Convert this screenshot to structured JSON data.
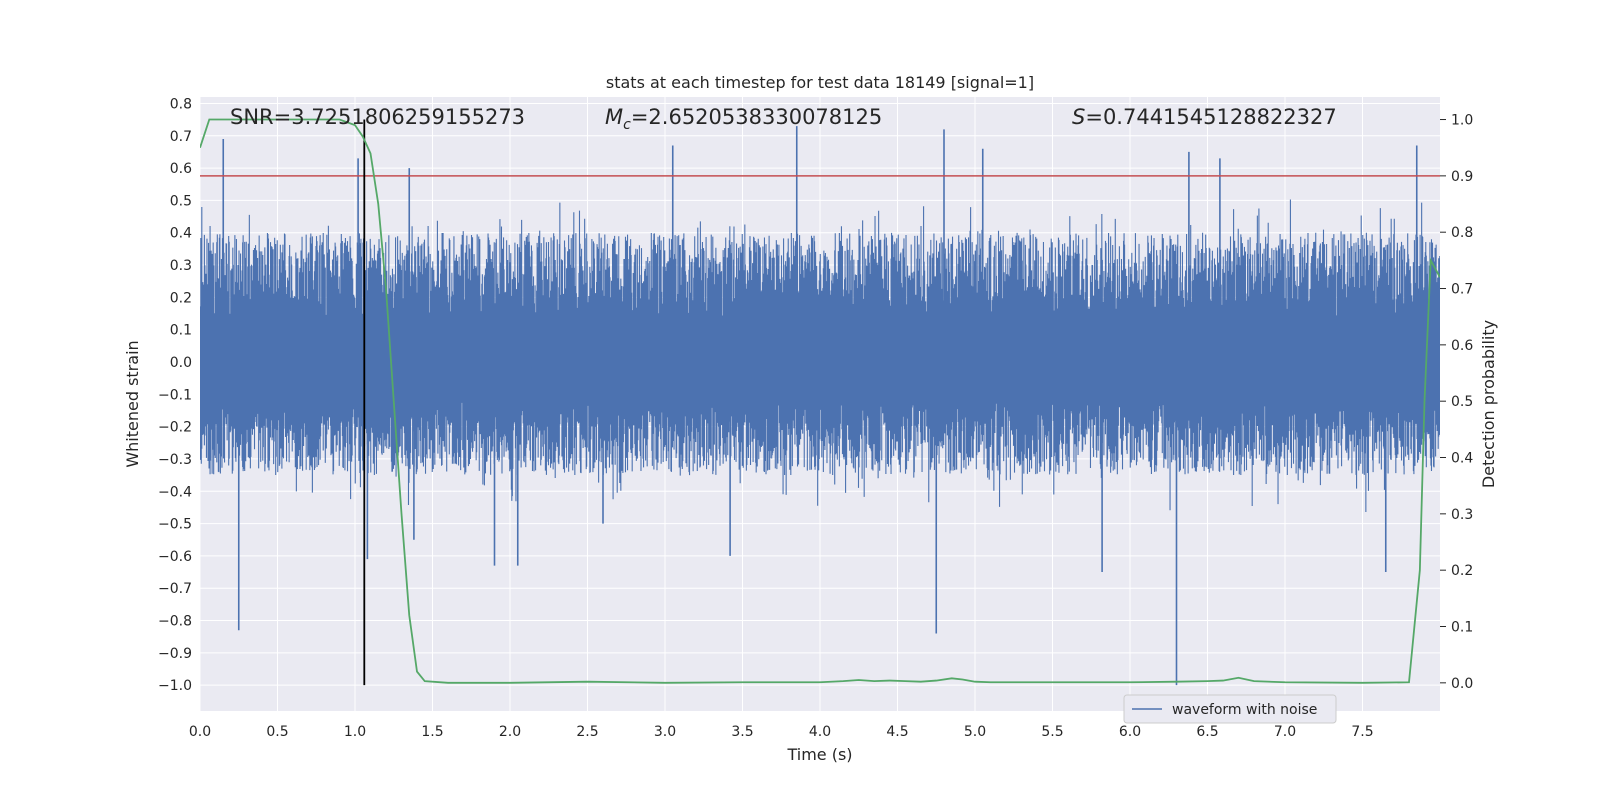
{
  "chart_data": {
    "type": "line",
    "title": "stats at each timestep for test data 18149 [signal=1]",
    "xlabel": "Time (s)",
    "ylabel_left": "Whitened strain",
    "ylabel_right": "Detection probability",
    "xlim": [
      0.0,
      8.0
    ],
    "ylim_left": [
      -1.08,
      0.82
    ],
    "ylim_right": [
      -0.05,
      1.04
    ],
    "x_ticks": [
      "0.0",
      "0.5",
      "1.0",
      "1.5",
      "2.0",
      "2.5",
      "3.0",
      "3.5",
      "4.0",
      "4.5",
      "5.0",
      "5.5",
      "6.0",
      "6.5",
      "7.0",
      "7.5"
    ],
    "y_ticks_left": [
      "0.8",
      "0.7",
      "0.6",
      "0.5",
      "0.4",
      "0.3",
      "0.2",
      "0.1",
      "0.0",
      "−0.1",
      "−0.2",
      "−0.3",
      "−0.4",
      "−0.5",
      "−0.6",
      "−0.7",
      "−0.8",
      "−0.9",
      "−1.0"
    ],
    "y_ticks_right": [
      "1.0",
      "0.9",
      "0.8",
      "0.7",
      "0.6",
      "0.5",
      "0.4",
      "0.3",
      "0.2",
      "0.1",
      "0.0"
    ],
    "annotations": {
      "snr": "SNR=3.7251806259155273",
      "mc_symbol": "M",
      "mc_sub": "c",
      "mc_value": "=2.6520538330078125",
      "s_symbol": "S",
      "s_value": "=0.7441545128822327"
    },
    "threshold": 0.9,
    "vertical_marker_x": 1.06,
    "grid": true,
    "legend_position": "bottom-right",
    "series": [
      {
        "name": "waveform with noise",
        "axis": "left",
        "color": "#4c72b0",
        "envelope_typical": [
          -0.35,
          0.4
        ],
        "spikes": [
          {
            "x": 0.15,
            "y": 0.69
          },
          {
            "x": 0.25,
            "y": -0.83
          },
          {
            "x": 1.02,
            "y": 0.63
          },
          {
            "x": 1.08,
            "y": -0.61
          },
          {
            "x": 1.35,
            "y": 0.6
          },
          {
            "x": 1.38,
            "y": -0.55
          },
          {
            "x": 1.9,
            "y": -0.63
          },
          {
            "x": 2.05,
            "y": -0.63
          },
          {
            "x": 2.6,
            "y": -0.5
          },
          {
            "x": 3.05,
            "y": 0.67
          },
          {
            "x": 3.42,
            "y": -0.6
          },
          {
            "x": 3.85,
            "y": 0.73
          },
          {
            "x": 4.75,
            "y": -0.84
          },
          {
            "x": 4.8,
            "y": 0.72
          },
          {
            "x": 5.05,
            "y": 0.66
          },
          {
            "x": 5.82,
            "y": -0.65
          },
          {
            "x": 6.3,
            "y": -1.0
          },
          {
            "x": 6.38,
            "y": 0.65
          },
          {
            "x": 6.58,
            "y": 0.63
          },
          {
            "x": 7.65,
            "y": -0.65
          },
          {
            "x": 7.85,
            "y": 0.67
          }
        ]
      },
      {
        "name": "",
        "axis": "right",
        "color": "#55a868",
        "x": [
          0.0,
          0.06,
          0.1,
          0.5,
          0.9,
          1.0,
          1.05,
          1.1,
          1.15,
          1.2,
          1.25,
          1.3,
          1.35,
          1.4,
          1.45,
          1.6,
          2.0,
          2.5,
          3.0,
          3.5,
          4.0,
          4.15,
          4.25,
          4.35,
          4.45,
          4.55,
          4.65,
          4.75,
          4.85,
          4.92,
          5.0,
          5.1,
          5.5,
          6.0,
          6.3,
          6.5,
          6.6,
          6.7,
          6.8,
          7.0,
          7.5,
          7.8,
          7.87,
          7.9,
          7.94,
          8.0
        ],
        "y": [
          0.95,
          1.0,
          1.0,
          1.0,
          1.0,
          0.99,
          0.97,
          0.94,
          0.85,
          0.7,
          0.5,
          0.3,
          0.12,
          0.02,
          0.003,
          0.0,
          0.0,
          0.002,
          0.0,
          0.001,
          0.001,
          0.003,
          0.005,
          0.003,
          0.004,
          0.003,
          0.002,
          0.004,
          0.008,
          0.006,
          0.002,
          0.001,
          0.001,
          0.001,
          0.002,
          0.003,
          0.004,
          0.009,
          0.003,
          0.001,
          0.0,
          0.001,
          0.2,
          0.5,
          0.75,
          0.72
        ]
      }
    ]
  }
}
